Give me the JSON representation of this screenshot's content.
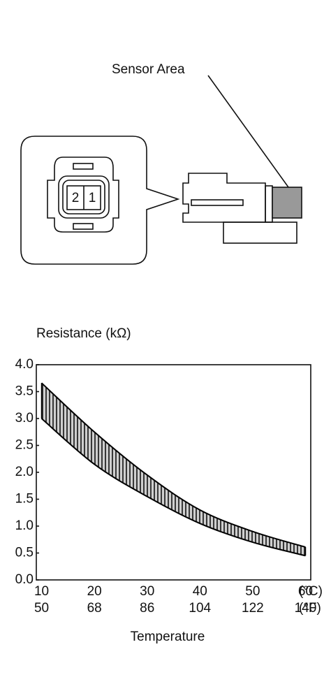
{
  "diagram": {
    "callout": "Sensor Area",
    "pins": [
      "2",
      "1"
    ]
  },
  "chart_data": {
    "type": "band",
    "ylabel": "Resistance (kΩ)",
    "xlabel": "Temperature",
    "x": [
      10,
      20,
      30,
      40,
      50,
      60
    ],
    "series": [
      {
        "name": "upper",
        "values": [
          3.66,
          2.75,
          1.95,
          1.3,
          0.9,
          0.61
        ]
      },
      {
        "name": "lower",
        "values": [
          3.0,
          2.15,
          1.55,
          1.05,
          0.7,
          0.45
        ]
      }
    ],
    "color": "#000000",
    "xlim": [
      9,
      61
    ],
    "ylim": [
      0,
      4
    ],
    "xticks": [
      10,
      20,
      30,
      40,
      50,
      60
    ],
    "xticks_f": [
      50,
      68,
      86,
      104,
      122,
      140
    ],
    "x_unit": "(°C)",
    "x_unit_f": "(°F)",
    "yticks": [
      {
        "value": 0,
        "label": "0.0"
      },
      0.5,
      {
        "value": 1,
        "label": "1.0"
      },
      1.5,
      {
        "value": 2,
        "label": "2.0"
      },
      2.5,
      {
        "value": 3,
        "label": "3.0"
      },
      3.5,
      {
        "value": 4,
        "label": "4.0"
      }
    ]
  }
}
